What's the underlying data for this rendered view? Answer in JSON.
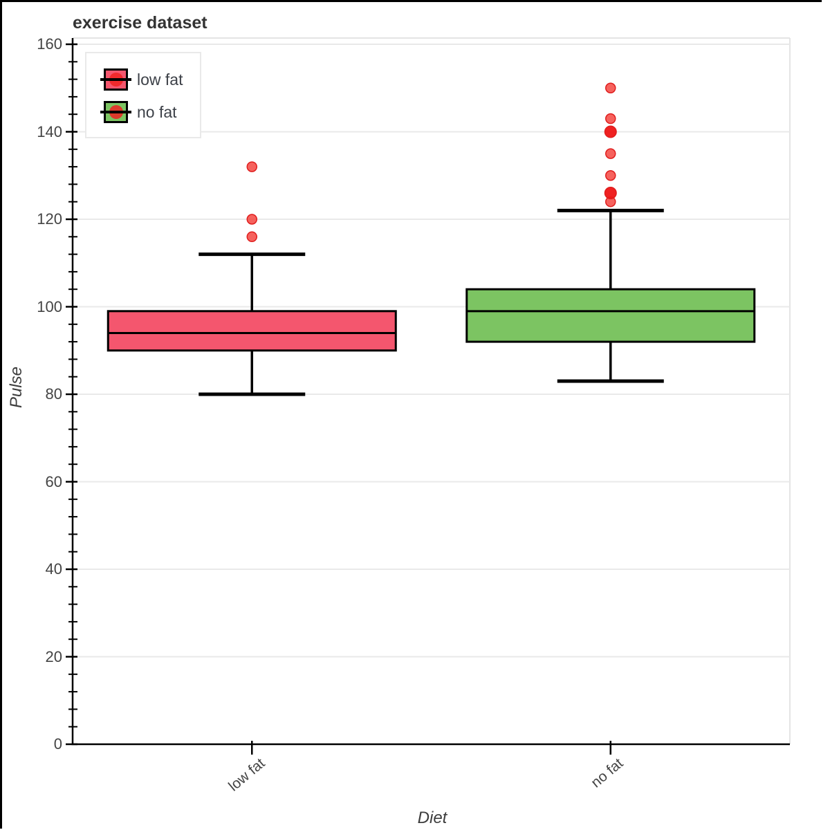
{
  "chart_data": {
    "type": "box",
    "title": "exercise dataset",
    "xlabel": "Diet",
    "ylabel": "Pulse",
    "ylim": [
      0,
      160
    ],
    "yticks": [
      0,
      20,
      40,
      60,
      80,
      100,
      120,
      140,
      160
    ],
    "ytick_minor_step": 4,
    "categories": [
      "low fat",
      "no fat"
    ],
    "grid": true,
    "legend_position": "top-left",
    "outlier_color": "#ee2222",
    "series": [
      {
        "name": "low fat",
        "color": "#f4566e",
        "whisker_low": 80,
        "q1": 90,
        "median": 94,
        "q3": 99,
        "whisker_high": 112,
        "outliers": [
          116,
          120,
          132
        ]
      },
      {
        "name": "no fat",
        "color": "#7cc462",
        "whisker_low": 83,
        "q1": 92,
        "median": 99,
        "q3": 104,
        "whisker_high": 122,
        "outliers": [
          124,
          126,
          126,
          130,
          135,
          140,
          140,
          143,
          150
        ]
      }
    ]
  }
}
